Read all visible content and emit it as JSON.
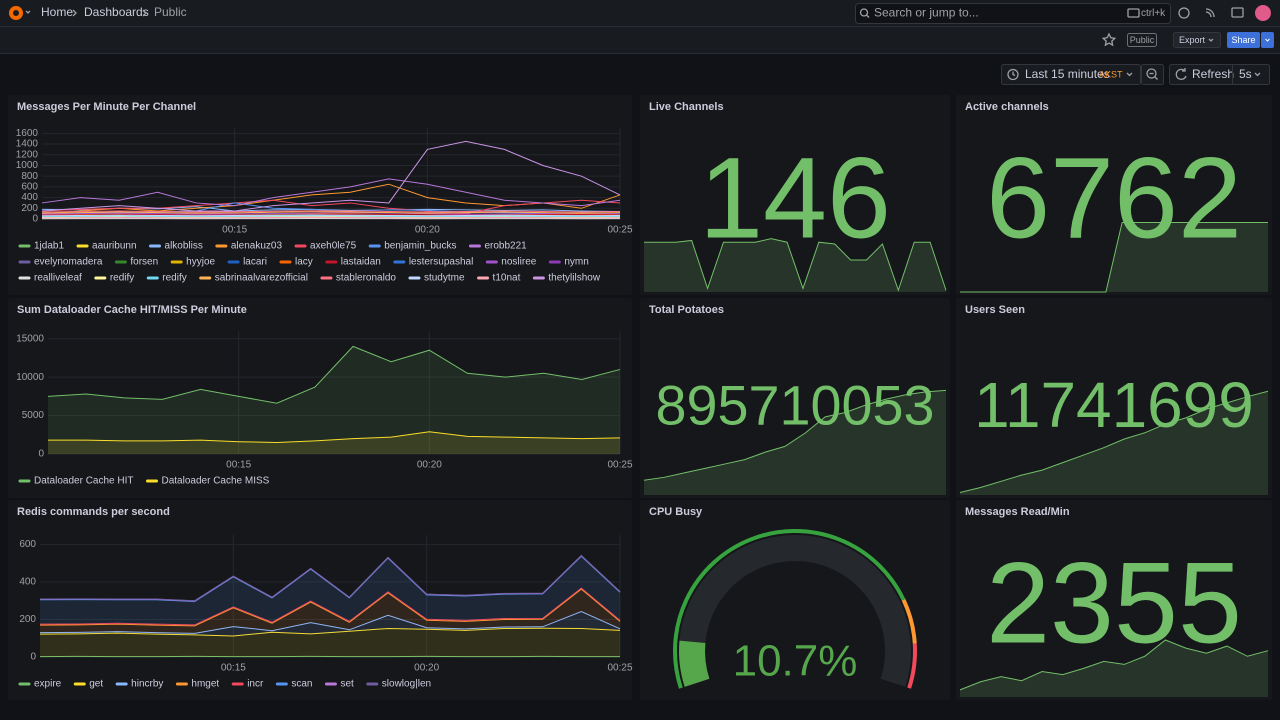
{
  "header": {
    "breadcrumbs": [
      "Home",
      "Dashboards",
      "Public"
    ],
    "search_placeholder": "Search or jump to...",
    "search_shortcut": "ctrl+k"
  },
  "toolbar": {
    "badge": "Public",
    "export": "Export",
    "share": "Share",
    "time_range": "Last 15 minutes",
    "timezone": "AKST",
    "refresh": "Refresh",
    "interval": "5s"
  },
  "panels": [
    {
      "type": "timeseries",
      "title": "Messages Per Minute Per Channel",
      "stacked": false,
      "fill": false,
      "x": [
        "00:10",
        "00:11",
        "00:12",
        "00:13",
        "00:14",
        "00:15",
        "00:16",
        "00:17",
        "00:18",
        "00:19",
        "00:20",
        "00:21",
        "00:22",
        "00:23",
        "00:24",
        "00:25"
      ],
      "xlim": [
        "00:10",
        "00:25"
      ],
      "xticks": [
        "00:15",
        "00:20",
        "00:25"
      ],
      "ylim": [
        0,
        1700
      ],
      "yticks": [
        0,
        200,
        400,
        600,
        800,
        1000,
        1200,
        1400,
        1600
      ],
      "series": [
        {
          "name": "1jdab1",
          "color": "#73bf69",
          "values": [
            60,
            70,
            80,
            70,
            60,
            60,
            70,
            80,
            90,
            80,
            70,
            60,
            60,
            70,
            80,
            60
          ]
        },
        {
          "name": "aauribunn",
          "color": "#fade2a",
          "values": [
            20,
            25,
            30,
            25,
            20,
            20,
            30,
            25,
            20,
            25,
            30,
            20,
            25,
            30,
            25,
            20
          ]
        },
        {
          "name": "alkobliss",
          "color": "#8ab8ff",
          "values": [
            180,
            170,
            200,
            190,
            230,
            150,
            170,
            180,
            160,
            170,
            180,
            170,
            160,
            170,
            150,
            140
          ]
        },
        {
          "name": "alenakuz03",
          "color": "#ff9830",
          "values": [
            100,
            150,
            200,
            150,
            200,
            250,
            350,
            450,
            500,
            650,
            400,
            300,
            250,
            300,
            200,
            450
          ]
        },
        {
          "name": "axeh0le75",
          "color": "#f2495c",
          "values": [
            150,
            180,
            200,
            200,
            250,
            300,
            350,
            250,
            300,
            200,
            150,
            100,
            250,
            300,
            350,
            300
          ]
        },
        {
          "name": "benjamin_bucks",
          "color": "#5794f2",
          "values": [
            100,
            110,
            120,
            130,
            150,
            300,
            200,
            180,
            150,
            170,
            160,
            130,
            120,
            110,
            100,
            90
          ]
        },
        {
          "name": "erobb221",
          "color": "#b877d9",
          "values": [
            300,
            400,
            350,
            500,
            300,
            250,
            400,
            500,
            600,
            750,
            650,
            500,
            350,
            300,
            250,
            350
          ]
        },
        {
          "name": "evelynomadera",
          "color": "#705da0",
          "values": [
            40,
            50,
            45,
            50,
            40,
            35,
            45,
            50,
            60,
            55,
            50,
            45,
            40,
            50,
            45,
            40
          ]
        },
        {
          "name": "forsen",
          "color": "#37872d",
          "values": [
            30,
            35,
            40,
            35,
            30,
            25,
            35,
            40,
            45,
            40,
            35,
            30,
            35,
            40,
            35,
            30
          ]
        },
        {
          "name": "hyyjoe",
          "color": "#e0b400",
          "values": [
            50,
            45,
            40,
            50,
            55,
            50,
            45,
            40,
            50,
            55,
            60,
            50,
            45,
            40,
            50,
            45
          ]
        },
        {
          "name": "lacari",
          "color": "#1f60c4",
          "values": [
            10,
            12,
            15,
            12,
            10,
            8,
            12,
            15,
            18,
            15,
            12,
            10,
            12,
            15,
            12,
            10
          ]
        },
        {
          "name": "lacy",
          "color": "#fa6400",
          "values": [
            80,
            90,
            100,
            90,
            80,
            85,
            95,
            100,
            110,
            120,
            100,
            90,
            80,
            90,
            100,
            80
          ]
        },
        {
          "name": "lastaidan",
          "color": "#c4162a",
          "values": [
            70,
            75,
            80,
            85,
            80,
            75,
            70,
            80,
            90,
            85,
            80,
            75,
            70,
            80,
            85,
            75
          ]
        },
        {
          "name": "lestersupashal",
          "color": "#3274d9",
          "values": [
            15,
            20,
            25,
            20,
            15,
            20,
            25,
            30,
            25,
            20,
            15,
            20,
            25,
            20,
            15,
            20
          ]
        },
        {
          "name": "nosliree",
          "color": "#a352cc",
          "values": [
            90,
            100,
            110,
            100,
            90,
            95,
            100,
            110,
            120,
            110,
            100,
            90,
            95,
            100,
            110,
            100
          ]
        },
        {
          "name": "nymn",
          "color": "#8f3bb8",
          "values": [
            25,
            30,
            35,
            30,
            25,
            30,
            35,
            40,
            35,
            30,
            25,
            30,
            35,
            30,
            25,
            30
          ]
        },
        {
          "name": "realliveleaf",
          "color": "#e0e0e0",
          "values": [
            5,
            6,
            8,
            6,
            5,
            6,
            8,
            10,
            8,
            6,
            5,
            6,
            8,
            6,
            5,
            6
          ]
        },
        {
          "name": "redify",
          "color": "#fff899",
          "values": [
            35,
            40,
            45,
            40,
            35,
            40,
            45,
            50,
            45,
            40,
            35,
            40,
            45,
            40,
            35,
            40
          ]
        },
        {
          "name": "redify",
          "color": "#73d9f0",
          "values": [
            45,
            50,
            55,
            50,
            45,
            50,
            55,
            60,
            55,
            50,
            45,
            50,
            55,
            50,
            45,
            50
          ]
        },
        {
          "name": "sabrinaalvarezofficial",
          "color": "#ffb357",
          "values": [
            110,
            120,
            130,
            120,
            110,
            115,
            125,
            135,
            130,
            120,
            110,
            120,
            130,
            120,
            110,
            120
          ]
        },
        {
          "name": "stableronaldo",
          "color": "#ff7383",
          "values": [
            130,
            140,
            150,
            140,
            130,
            135,
            145,
            155,
            150,
            140,
            130,
            140,
            150,
            140,
            130,
            140
          ]
        },
        {
          "name": "studytme",
          "color": "#c0d8ff",
          "values": [
            60,
            65,
            70,
            65,
            60,
            65,
            70,
            75,
            70,
            65,
            60,
            65,
            70,
            65,
            60,
            65
          ]
        },
        {
          "name": "t10nat",
          "color": "#ffa6b0",
          "values": [
            20,
            22,
            25,
            22,
            20,
            22,
            25,
            28,
            25,
            22,
            20,
            22,
            25,
            22,
            20,
            22
          ]
        },
        {
          "name": "thetylilshow",
          "color": "#ca95e5",
          "values": [
            150,
            200,
            250,
            200,
            150,
            150,
            250,
            300,
            350,
            300,
            1300,
            1450,
            1300,
            1000,
            800,
            450
          ]
        }
      ]
    },
    {
      "type": "stat",
      "title": "Live Channels",
      "value": 146,
      "color": "#73bf69",
      "sparkline_lim": [
        112,
        175
      ],
      "sparkline": [
        140,
        140,
        140,
        141,
        114,
        140,
        140,
        140,
        142,
        140,
        114,
        140,
        139,
        130,
        130,
        139,
        113,
        140,
        140,
        113
      ]
    },
    {
      "type": "stat",
      "title": "Active channels",
      "value": 6762,
      "color": "#73bf69",
      "sparkline_lim": [
        6700,
        6800
      ],
      "sparkline": [
        6700,
        6700,
        6700,
        6700,
        6700,
        6700,
        6700,
        6700,
        6700,
        6700,
        6762,
        6762,
        6762,
        6762,
        6762,
        6762,
        6762,
        6762,
        6762,
        6762
      ]
    },
    {
      "type": "timeseries",
      "title": "Sum Dataloader Cache HIT/MISS Per Minute",
      "stacked": false,
      "fill": true,
      "x": [
        "00:10",
        "00:11",
        "00:12",
        "00:13",
        "00:14",
        "00:15",
        "00:16",
        "00:17",
        "00:18",
        "00:19",
        "00:20",
        "00:21",
        "00:22",
        "00:23",
        "00:24",
        "00:25"
      ],
      "xlim": [
        "00:10",
        "00:25"
      ],
      "xticks": [
        "00:15",
        "00:20",
        "00:25"
      ],
      "ylim": [
        0,
        16000
      ],
      "yticks": [
        0,
        5000,
        10000,
        15000
      ],
      "series": [
        {
          "name": "Dataloader Cache HIT",
          "color": "#73bf69",
          "values": [
            7500,
            7800,
            7300,
            7100,
            8400,
            7500,
            6600,
            8700,
            14000,
            12000,
            13500,
            10500,
            10000,
            10500,
            9700,
            11000
          ]
        },
        {
          "name": "Dataloader Cache MISS",
          "color": "#fade2a",
          "values": [
            1800,
            1800,
            1700,
            1700,
            1800,
            1600,
            1500,
            1700,
            2000,
            2200,
            2900,
            2300,
            2200,
            2100,
            2000,
            2100
          ]
        }
      ]
    },
    {
      "type": "stat",
      "title": "Total Potatoes",
      "value": 895710053,
      "color": "#73bf69",
      "sparkline_lim": [
        895000000,
        895760000
      ],
      "sparkline": [
        895100000,
        895120000,
        895150000,
        895180000,
        895210000,
        895240000,
        895290000,
        895330000,
        895420000,
        895530000,
        895560000,
        895610000,
        895650000,
        895680000,
        895700000,
        895710053
      ]
    },
    {
      "type": "stat",
      "title": "Users Seen",
      "value": 11741699,
      "color": "#73bf69",
      "sparkline_lim": [
        11700000,
        11745000
      ],
      "sparkline": [
        11701000,
        11703000,
        11705500,
        11708000,
        11710000,
        11713000,
        11716000,
        11719000,
        11722500,
        11725000,
        11728500,
        11731000,
        11734500,
        11737000,
        11739500,
        11741699
      ]
    },
    {
      "type": "timeseries",
      "title": "Redis commands per second",
      "stacked": true,
      "fill": true,
      "x": [
        "00:10",
        "00:11",
        "00:12",
        "00:13",
        "00:14",
        "00:15",
        "00:16",
        "00:17",
        "00:18",
        "00:19",
        "00:20",
        "00:21",
        "00:22",
        "00:23",
        "00:24",
        "00:25"
      ],
      "xlim": [
        "00:10",
        "00:25"
      ],
      "xticks": [
        "00:15",
        "00:20",
        "00:25"
      ],
      "ylim": [
        0,
        650
      ],
      "yticks": [
        0,
        200,
        400,
        600
      ],
      "series": [
        {
          "name": "expire",
          "color": "#73bf69",
          "values": [
            2,
            3,
            2,
            2,
            3,
            2,
            2,
            3,
            2,
            2,
            3,
            2,
            2,
            3,
            2,
            2
          ]
        },
        {
          "name": "get",
          "color": "#fade2a",
          "values": [
            120,
            120,
            125,
            120,
            115,
            110,
            130,
            120,
            135,
            150,
            145,
            140,
            150,
            150,
            150,
            140
          ]
        },
        {
          "name": "hincrby",
          "color": "#8ab8ff",
          "values": [
            8,
            8,
            8,
            8,
            8,
            50,
            8,
            60,
            8,
            70,
            8,
            8,
            8,
            8,
            90,
            8
          ]
        },
        {
          "name": "hmget",
          "color": "#ff9830",
          "values": [
            40,
            40,
            40,
            40,
            40,
            100,
            40,
            110,
            40,
            120,
            40,
            40,
            40,
            40,
            120,
            40
          ]
        },
        {
          "name": "incr",
          "color": "#f2495c",
          "values": [
            5,
            5,
            5,
            5,
            5,
            5,
            5,
            5,
            5,
            5,
            5,
            5,
            5,
            5,
            5,
            5
          ]
        },
        {
          "name": "scan",
          "color": "#5794f2",
          "values": [
            130,
            130,
            125,
            130,
            125,
            160,
            130,
            170,
            125,
            180,
            130,
            130,
            130,
            130,
            170,
            150
          ]
        },
        {
          "name": "set",
          "color": "#b877d9",
          "values": [
            3,
            3,
            3,
            3,
            3,
            3,
            3,
            3,
            3,
            3,
            3,
            3,
            3,
            3,
            3,
            3
          ]
        },
        {
          "name": "slowlog|len",
          "color": "#705da0",
          "values": [
            1,
            1,
            1,
            1,
            1,
            1,
            1,
            1,
            1,
            1,
            1,
            1,
            1,
            1,
            1,
            1
          ]
        }
      ]
    },
    {
      "type": "gauge",
      "title": "CPU Busy",
      "value": 10.7,
      "value_label": "10.7%",
      "color": "#56a64b",
      "lim": [
        0,
        100
      ],
      "thresholds": [
        {
          "value": 0,
          "color": "#37a33f"
        },
        {
          "value": 80,
          "color": "#ff9830"
        },
        {
          "value": 90,
          "color": "#f2495c"
        }
      ]
    },
    {
      "type": "stat",
      "title": "Messages Read/Min",
      "value": 2355,
      "color": "#73bf69",
      "sparkline_lim": [
        1900,
        3000
      ],
      "sparkline": [
        1970,
        2050,
        2100,
        2060,
        2150,
        2120,
        2180,
        2250,
        2220,
        2300,
        2460,
        2380,
        2330,
        2400,
        2300,
        2355
      ]
    }
  ]
}
